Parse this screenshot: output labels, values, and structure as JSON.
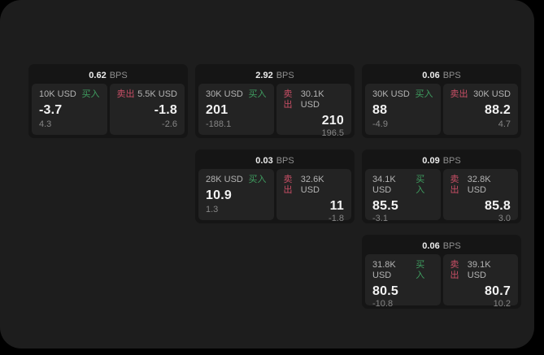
{
  "labels": {
    "bps": "BPS",
    "buy": "买入",
    "sell": "卖出"
  },
  "colors": {
    "page": "#1d1d1d",
    "card": "#151515",
    "panel": "#232323",
    "buy": "#3f9e60",
    "sell": "#c94f66"
  },
  "cards": [
    {
      "row": 1,
      "col": 1,
      "bps": "0.62",
      "buy": {
        "amount": "10K USD",
        "value": "-3.7",
        "delta": "4.3"
      },
      "sell": {
        "amount": "5.5K USD",
        "value": "-1.8",
        "delta": "-2.6"
      }
    },
    {
      "row": 1,
      "col": 2,
      "bps": "2.92",
      "buy": {
        "amount": "30K USD",
        "value": "201",
        "delta": "-188.1"
      },
      "sell": {
        "amount": "30.1K USD",
        "value": "210",
        "delta": "196.5"
      }
    },
    {
      "row": 1,
      "col": 3,
      "bps": "0.06",
      "buy": {
        "amount": "30K USD",
        "value": "88",
        "delta": "-4.9"
      },
      "sell": {
        "amount": "30K USD",
        "value": "88.2",
        "delta": "4.7"
      }
    },
    {
      "row": 2,
      "col": 2,
      "bps": "0.03",
      "buy": {
        "amount": "28K USD",
        "value": "10.9",
        "delta": "1.3"
      },
      "sell": {
        "amount": "32.6K USD",
        "value": "11",
        "delta": "-1.8"
      }
    },
    {
      "row": 2,
      "col": 3,
      "bps": "0.09",
      "buy": {
        "amount": "34.1K USD",
        "value": "85.5",
        "delta": "-3.1"
      },
      "sell": {
        "amount": "32.8K USD",
        "value": "85.8",
        "delta": "3.0"
      }
    },
    {
      "row": 3,
      "col": 3,
      "bps": "0.06",
      "buy": {
        "amount": "31.8K USD",
        "value": "80.5",
        "delta": "-10.8"
      },
      "sell": {
        "amount": "39.1K USD",
        "value": "80.7",
        "delta": "10.2"
      }
    }
  ]
}
